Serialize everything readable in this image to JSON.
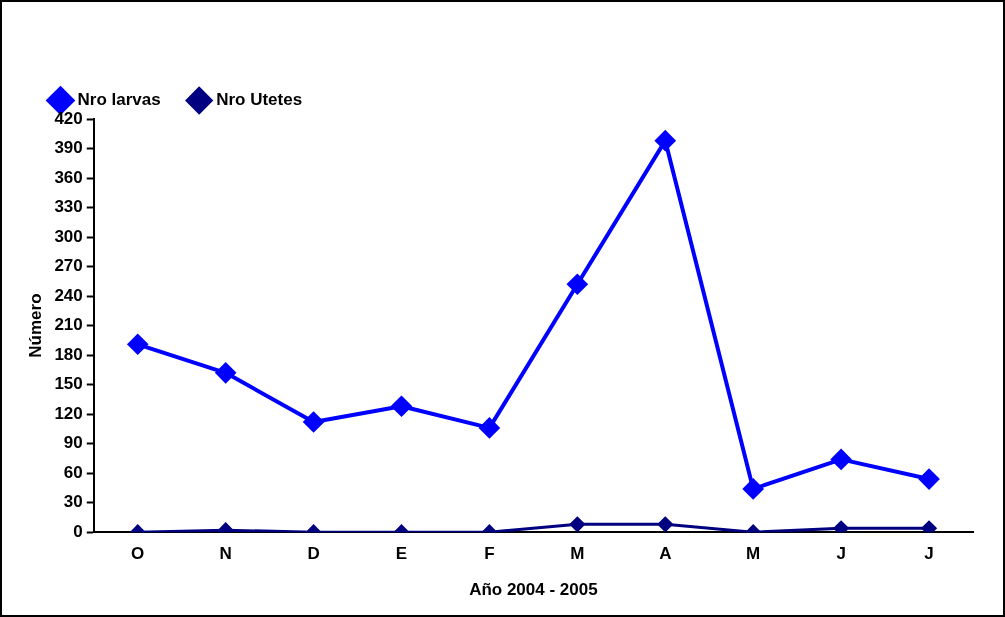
{
  "chart_data": {
    "type": "line",
    "xlabel": "Año 2004 - 2005",
    "ylabel": "Número",
    "categories": [
      "O",
      "N",
      "D",
      "E",
      "F",
      "M",
      "A",
      "M",
      "J",
      "J"
    ],
    "series": [
      {
        "name": "Nro larvas",
        "color": "#0000ff",
        "values": [
          191,
          162,
          112,
          128,
          106,
          252,
          398,
          44,
          74,
          54
        ]
      },
      {
        "name": "Nro Utetes",
        "color": "#000080",
        "values": [
          0,
          2,
          0,
          0,
          0,
          8,
          8,
          0,
          4,
          4
        ]
      }
    ],
    "ylim": [
      0,
      420
    ],
    "yticks": [
      0,
      30,
      60,
      90,
      120,
      150,
      180,
      210,
      240,
      270,
      300,
      330,
      360,
      390,
      420
    ],
    "grid": false,
    "legend": "top left",
    "marker": "diamond",
    "line_style": "solid"
  }
}
